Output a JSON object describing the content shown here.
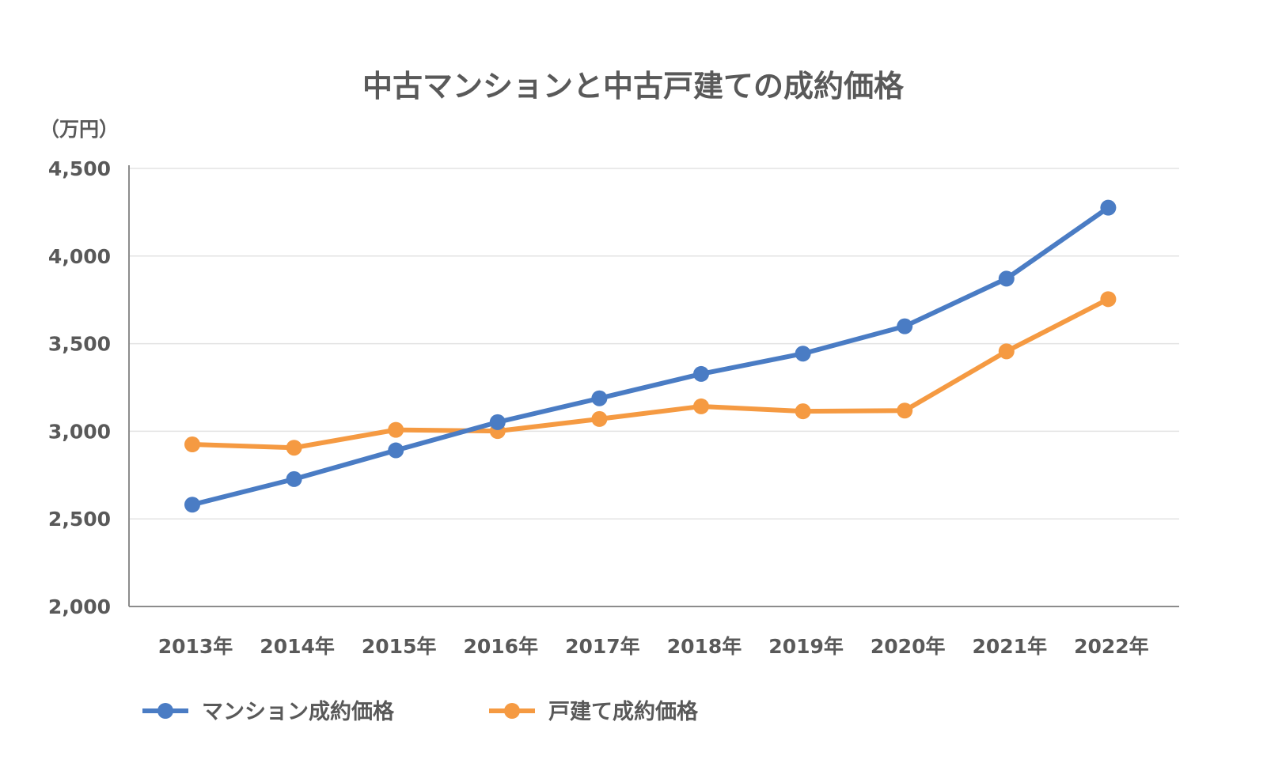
{
  "chart_data": {
    "type": "line",
    "title": "中古マンションと中古戸建ての成約価格",
    "unit_label": "（万円）",
    "categories": [
      "2013年",
      "2014年",
      "2015年",
      "2016年",
      "2017年",
      "2018年",
      "2019年",
      "2020年",
      "2021年",
      "2022年"
    ],
    "ylim": [
      2000,
      4500
    ],
    "yticks": [
      2000,
      2500,
      3000,
      3500,
      4000,
      4500
    ],
    "ytick_labels": [
      "2,000",
      "2,500",
      "3,000",
      "3,500",
      "4,000",
      "4,500"
    ],
    "grid": true,
    "legend_position": "bottom-left",
    "series": [
      {
        "name": "マンション成約価格",
        "color": "#4a7cc4",
        "values": [
          2581,
          2727,
          2891,
          3052,
          3188,
          3327,
          3443,
          3599,
          3871,
          4276
        ]
      },
      {
        "name": "戸建て成約価格",
        "color": "#f59a42",
        "values": [
          2925,
          2906,
          3008,
          3001,
          3070,
          3142,
          3114,
          3118,
          3456,
          3754
        ]
      }
    ]
  }
}
